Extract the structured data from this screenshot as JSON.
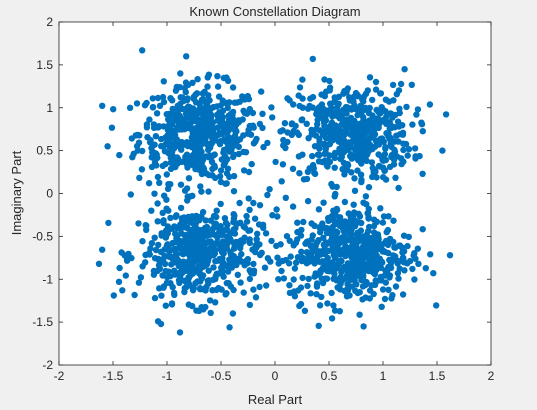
{
  "chart_data": {
    "type": "scatter",
    "title": "Known Constellation Diagram",
    "xlabel": "Real Part",
    "ylabel": "Imaginary Part",
    "xlim": [
      -2,
      2
    ],
    "ylim": [
      -2,
      2
    ],
    "x_ticks": [
      -2,
      -1.5,
      -1,
      -0.5,
      0,
      0.5,
      1,
      1.5,
      2
    ],
    "y_ticks": [
      -2,
      -1.5,
      -1,
      -0.5,
      0,
      0.5,
      1,
      1.5,
      2
    ],
    "x_tick_labels": [
      "-2",
      "-1.5",
      "-1",
      "-0.5",
      "0",
      "0.5",
      "1",
      "1.5",
      "2"
    ],
    "y_tick_labels": [
      "-2",
      "-1.5",
      "-1",
      "-0.5",
      "0",
      "0.5",
      "1",
      "1.5",
      "2"
    ],
    "grid": false,
    "marker_color": "#0072BD",
    "series": [
      {
        "cluster_centers": [
          [
            -0.7,
            0.7
          ],
          [
            0.7,
            0.7
          ],
          [
            -0.7,
            -0.7
          ],
          [
            0.7,
            -0.7
          ]
        ],
        "approx_spread_std": 0.28,
        "outliers": [
          [
            -1.23,
            1.67
          ],
          [
            -1.63,
            -0.82
          ],
          [
            0.82,
            -1.55
          ],
          [
            1.62,
            -0.72
          ],
          [
            -0.88,
            -1.62
          ],
          [
            0.35,
            1.57
          ],
          [
            1.2,
            1.45
          ],
          [
            -0.05,
            0.05
          ],
          [
            0.1,
            -0.05
          ],
          [
            -0.42,
            -1.56
          ],
          [
            1.55,
            0.5
          ],
          [
            -1.55,
            0.55
          ]
        ]
      }
    ]
  },
  "colors": {
    "figure_bg": "#f0f0f0",
    "axes_bg": "#ffffff",
    "axis_line": "#262626",
    "marker": "#0072BD"
  }
}
